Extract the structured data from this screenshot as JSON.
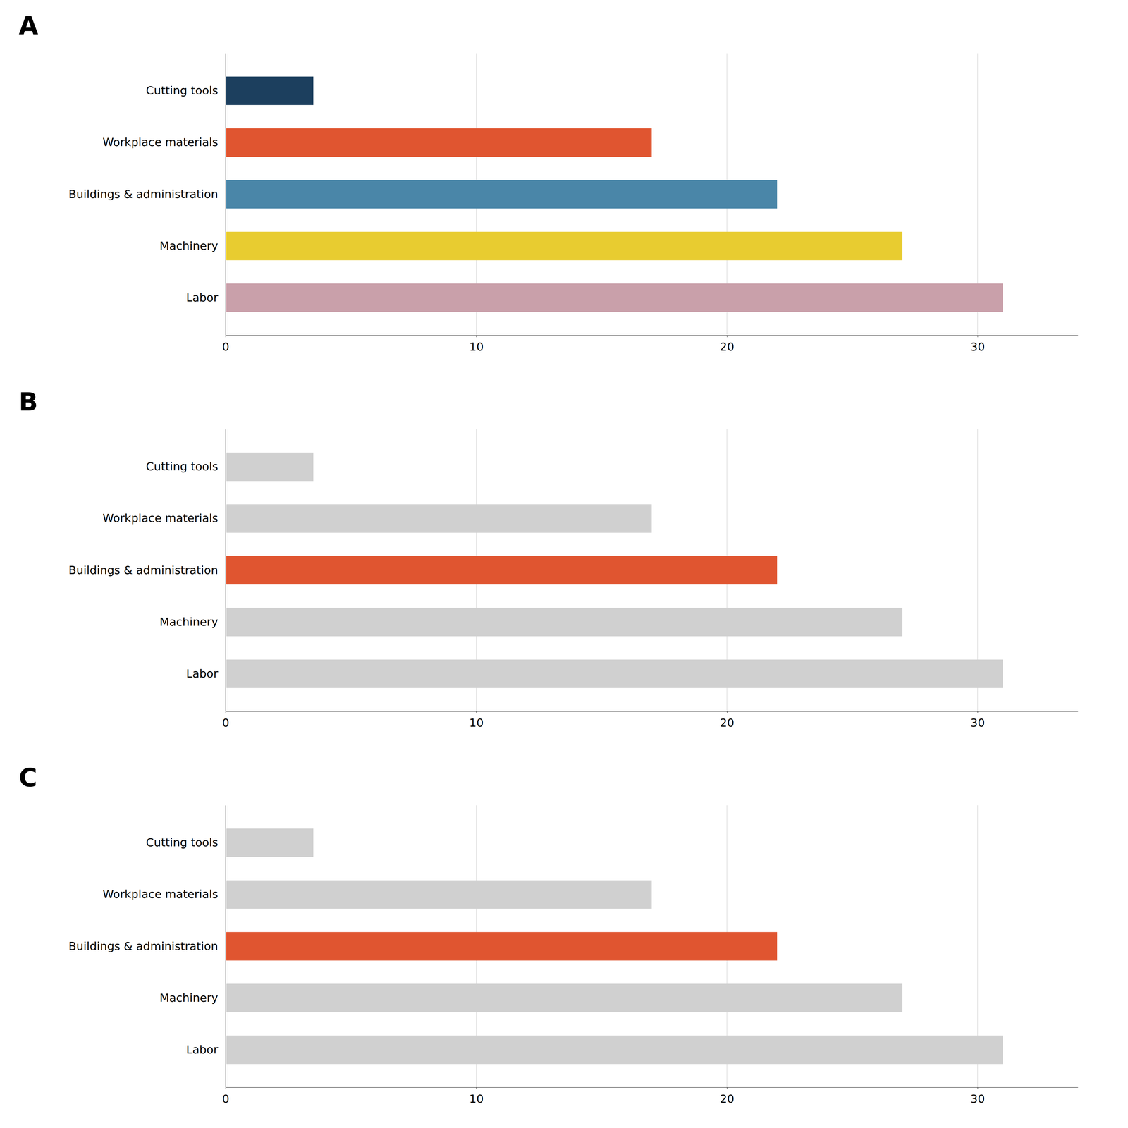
{
  "chart_data": [
    {
      "type": "bar",
      "title": "A",
      "orientation": "horizontal",
      "categories": [
        "Cutting tools",
        "Workplace materials",
        "Buildings & administration",
        "Machinery",
        "Labor"
      ],
      "values": [
        3.5,
        17.0,
        22.0,
        27.0,
        31.0
      ],
      "colors": [
        "#1c3f5e",
        "#e05530",
        "#4a86a8",
        "#e8cc30",
        "#c9a0aa"
      ],
      "xlim": [
        0,
        34
      ],
      "xticks": [
        0,
        10,
        20,
        30
      ],
      "grid": true
    },
    {
      "type": "bar",
      "title": "B",
      "orientation": "horizontal",
      "categories": [
        "Cutting tools",
        "Workplace materials",
        "Buildings & administration",
        "Machinery",
        "Labor"
      ],
      "values": [
        3.5,
        17.0,
        22.0,
        27.0,
        31.0
      ],
      "colors": [
        "#d0d0d0",
        "#d0d0d0",
        "#e05530",
        "#d0d0d0",
        "#d0d0d0"
      ],
      "xlim": [
        0,
        34
      ],
      "xticks": [
        0,
        10,
        20,
        30
      ],
      "grid": true
    },
    {
      "type": "bar",
      "title": "C",
      "orientation": "horizontal",
      "categories": [
        "Cutting tools",
        "Workplace materials",
        "Buildings & administration",
        "Machinery",
        "Labor"
      ],
      "values": [
        3.5,
        17.0,
        22.0,
        27.0,
        31.0
      ],
      "colors": [
        "#d0d0d0",
        "#d0d0d0",
        "#e05530",
        "#d0d0d0",
        "#d0d0d0"
      ],
      "xlim": [
        0,
        34
      ],
      "xticks": [
        0,
        10,
        20,
        30
      ],
      "grid": true
    }
  ]
}
